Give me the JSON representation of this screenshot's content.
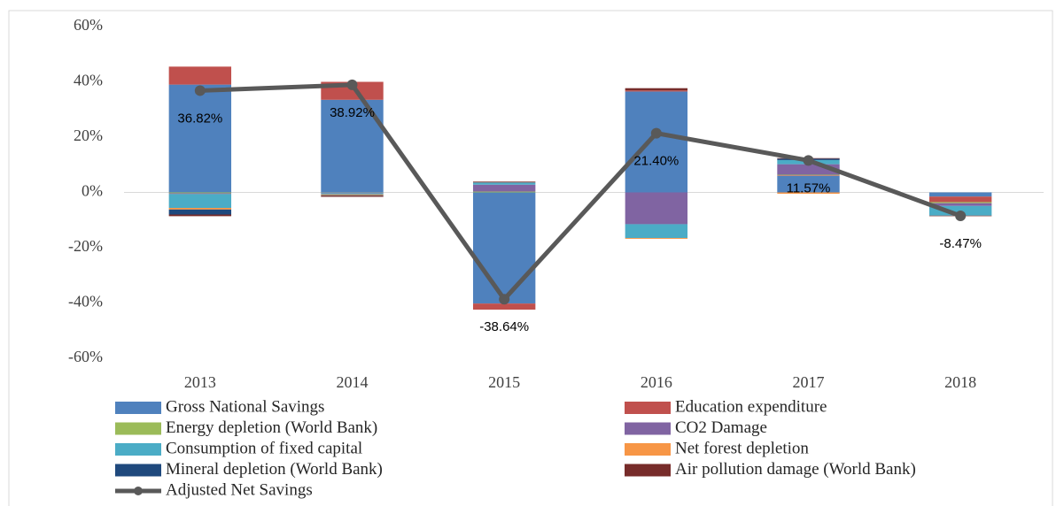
{
  "chart_data": {
    "type": "stacked-bar-line",
    "categories": [
      "2013",
      "2014",
      "2015",
      "2016",
      "2017",
      "2018"
    ],
    "ylim": [
      -60,
      60
    ],
    "yticks": [
      {
        "value": -60,
        "label": "-60%"
      },
      {
        "value": -40,
        "label": "-40%"
      },
      {
        "value": -20,
        "label": "-20%"
      },
      {
        "value": 0,
        "label": "0%"
      },
      {
        "value": 20,
        "label": "20%"
      },
      {
        "value": 40,
        "label": "40%"
      },
      {
        "value": 60,
        "label": "60%"
      }
    ],
    "series": [
      {
        "name": "Gross National Savings",
        "color": "#4f81bd",
        "values": [
          39,
          33.5,
          -40.2,
          36.5,
          6,
          -1.5
        ]
      },
      {
        "name": "Education expenditure",
        "color": "#c0504d",
        "values": [
          6.5,
          6.5,
          -2.2,
          0.4,
          0.2,
          -2
        ]
      },
      {
        "name": "Energy depletion (World Bank)",
        "color": "#9bbb59",
        "values": [
          -0.3,
          -0.1,
          0.3,
          0,
          0.2,
          -0.4
        ]
      },
      {
        "name": "CO2 Damage",
        "color": "#8064a2",
        "values": [
          -0.3,
          -0.2,
          2.5,
          -11.5,
          3.8,
          -1
        ]
      },
      {
        "name": "Consumption of fixed capital",
        "color": "#4bacc6",
        "values": [
          -5,
          -0.4,
          0.8,
          -5,
          1.5,
          -3.5
        ]
      },
      {
        "name": "Net forest depletion",
        "color": "#f79646",
        "values": [
          -0.6,
          -0.3,
          0,
          -0.3,
          -0.5,
          0
        ]
      },
      {
        "name": "Mineral depletion (World Bank)",
        "color": "#1f497d",
        "values": [
          -1.8,
          -0.2,
          0,
          0,
          0.5,
          0
        ]
      },
      {
        "name": "Air pollution damage (World Bank)",
        "color": "#772c2a",
        "values": [
          -0.6,
          -0.4,
          0.3,
          0.8,
          0.2,
          -0.2
        ]
      }
    ],
    "line": {
      "name": "Adjusted Net Savings",
      "color": "#595959",
      "values": [
        36.82,
        38.92,
        -38.64,
        21.4,
        11.57,
        -8.47
      ],
      "value_labels": [
        "36.82%",
        "38.92%",
        "-38.64%",
        "21.40%",
        "11.57%",
        "-8.47%"
      ]
    },
    "grid": false
  }
}
